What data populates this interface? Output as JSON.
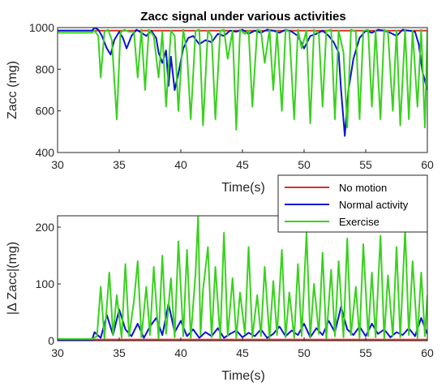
{
  "chart_data": [
    {
      "type": "line",
      "title": "Zacc signal under various activities",
      "xlabel": "Time(s)",
      "ylabel": "Zacc (mg)",
      "xlim": [
        30,
        60
      ],
      "ylim": [
        400,
        1000
      ],
      "xticks": [
        30,
        35,
        40,
        45,
        50,
        55,
        60
      ],
      "yticks": [
        400,
        600,
        800,
        1000
      ],
      "grid": false,
      "series": [
        {
          "name": "No motion",
          "color": "#d9322a",
          "x": [
            30,
            60
          ],
          "y": [
            985,
            985
          ]
        },
        {
          "name": "Normal activity",
          "color": "#0a14d4",
          "x": [
            30,
            32.8,
            33,
            33.3,
            33.6,
            34,
            34.3,
            34.6,
            35,
            35.3,
            35.6,
            36,
            36.4,
            36.8,
            37.2,
            37.6,
            38,
            38.2,
            38.5,
            38.8,
            39,
            39.2,
            39.5,
            39.8,
            40.2,
            40.6,
            41,
            41.5,
            42,
            42.5,
            43,
            43.5,
            44,
            44.5,
            45,
            45.5,
            46,
            46.5,
            47,
            47.5,
            48,
            48.5,
            49,
            49.5,
            50,
            50.5,
            51,
            51.5,
            52,
            52.4,
            52.8,
            53,
            53.3,
            53.6,
            54,
            54.5,
            55,
            55.5,
            56,
            56.5,
            57,
            57.5,
            58,
            58.5,
            59,
            59.3,
            59.6,
            60
          ],
          "y": [
            985,
            985,
            1000,
            990,
            960,
            900,
            870,
            940,
            980,
            950,
            900,
            960,
            990,
            975,
            960,
            985,
            950,
            880,
            830,
            890,
            720,
            860,
            700,
            780,
            900,
            950,
            960,
            920,
            940,
            930,
            970,
            960,
            985,
            980,
            990,
            970,
            985,
            975,
            990,
            985,
            975,
            990,
            980,
            960,
            900,
            960,
            970,
            985,
            960,
            930,
            880,
            700,
            480,
            700,
            850,
            950,
            985,
            975,
            990,
            985,
            975,
            960,
            990,
            985,
            980,
            920,
            790,
            700
          ]
        },
        {
          "name": "Exercise",
          "color": "#39d11e",
          "x": [
            30,
            32.8,
            33,
            33.3,
            33.5,
            33.8,
            34.1,
            34.4,
            34.8,
            35.1,
            35.4,
            35.8,
            36.2,
            36.5,
            36.8,
            37.1,
            37.4,
            37.8,
            38.2,
            38.5,
            38.8,
            39.2,
            39.5,
            39.8,
            40.2,
            40.5,
            40.8,
            41.2,
            41.5,
            41.8,
            42.2,
            42.5,
            42.8,
            43.2,
            43.5,
            43.8,
            44.2,
            44.5,
            44.8,
            45.2,
            45.5,
            45.8,
            46.2,
            46.5,
            46.8,
            47.2,
            47.5,
            47.8,
            48.2,
            48.5,
            48.8,
            49.2,
            49.5,
            49.8,
            50.2,
            50.5,
            50.8,
            51.2,
            51.5,
            51.8,
            52.2,
            52.5,
            52.8,
            53.2,
            53.5,
            53.8,
            54.2,
            54.5,
            54.8,
            55.2,
            55.5,
            55.8,
            56.2,
            56.5,
            56.8,
            57.2,
            57.5,
            57.8,
            58.2,
            58.5,
            58.8,
            59.2,
            59.5,
            59.8,
            60
          ],
          "y": [
            975,
            975,
            985,
            960,
            760,
            980,
            990,
            940,
            560,
            975,
            990,
            980,
            980,
            760,
            990,
            700,
            990,
            960,
            760,
            980,
            620,
            985,
            960,
            600,
            990,
            880,
            560,
            985,
            990,
            530,
            985,
            960,
            560,
            985,
            990,
            850,
            985,
            510,
            990,
            970,
            985,
            620,
            990,
            985,
            830,
            990,
            700,
            985,
            600,
            990,
            980,
            560,
            990,
            900,
            985,
            540,
            990,
            970,
            620,
            985,
            990,
            560,
            985,
            880,
            520,
            990,
            980,
            560,
            985,
            990,
            620,
            985,
            560,
            990,
            980,
            600,
            985,
            530,
            990,
            560,
            985,
            620,
            990,
            520,
            985
          ]
        }
      ]
    },
    {
      "type": "line",
      "title": "",
      "xlabel": "Time(s)",
      "ylabel": "|Δ Zacc|(mg)",
      "xlim": [
        30,
        60
      ],
      "ylim": [
        0,
        220
      ],
      "xticks": [
        30,
        35,
        40,
        45,
        50,
        55,
        60
      ],
      "yticks": [
        0,
        100,
        200
      ],
      "grid": false,
      "legend": {
        "position": "top-right",
        "entries": [
          "No motion",
          "Normal activity",
          "Exercise"
        ]
      },
      "series": [
        {
          "name": "No motion",
          "color": "#d9322a",
          "x": [
            30,
            60
          ],
          "y": [
            2,
            2
          ]
        },
        {
          "name": "Normal activity",
          "color": "#0a14d4",
          "x": [
            30,
            32.8,
            33,
            33.5,
            34,
            34.5,
            35,
            35.5,
            36,
            36.5,
            37,
            37.5,
            38,
            38.5,
            39,
            39.5,
            40,
            40.5,
            41,
            41.5,
            42,
            42.5,
            43,
            43.5,
            44,
            44.5,
            45,
            45.5,
            46,
            46.5,
            47,
            47.5,
            48,
            48.5,
            49,
            49.5,
            50,
            50.5,
            51,
            51.5,
            52,
            52.5,
            53,
            53.5,
            54,
            54.5,
            55,
            55.5,
            56,
            56.5,
            57,
            57.5,
            58,
            58.5,
            59,
            59.5,
            60
          ],
          "y": [
            2,
            2,
            15,
            5,
            45,
            10,
            55,
            20,
            8,
            30,
            5,
            25,
            40,
            10,
            65,
            15,
            35,
            8,
            20,
            5,
            15,
            8,
            22,
            5,
            12,
            18,
            6,
            14,
            8,
            20,
            5,
            12,
            25,
            8,
            18,
            10,
            30,
            6,
            22,
            10,
            35,
            15,
            60,
            20,
            10,
            25,
            8,
            30,
            12,
            20,
            6,
            15,
            10,
            22,
            8,
            40,
            12
          ]
        },
        {
          "name": "Exercise",
          "color": "#39d11e",
          "x": [
            30,
            32.8,
            33.2,
            33.5,
            33.8,
            34.2,
            34.5,
            34.8,
            35.2,
            35.5,
            35.8,
            36.2,
            36.5,
            36.8,
            37.2,
            37.5,
            37.8,
            38.2,
            38.5,
            38.8,
            39.2,
            39.5,
            39.8,
            40.2,
            40.5,
            40.8,
            41.2,
            41.4,
            41.6,
            41.8,
            42.2,
            42.5,
            42.8,
            43.2,
            43.5,
            43.8,
            44.2,
            44.5,
            44.8,
            45.2,
            45.5,
            45.8,
            46.2,
            46.5,
            46.8,
            47.2,
            47.5,
            47.8,
            48.2,
            48.5,
            48.8,
            49.2,
            49.5,
            49.8,
            50.2,
            50.5,
            50.8,
            51.2,
            51.5,
            51.8,
            52.2,
            52.5,
            52.8,
            53.2,
            53.5,
            53.8,
            54.2,
            54.5,
            54.8,
            55.2,
            55.5,
            55.8,
            56.2,
            56.5,
            56.8,
            57.2,
            57.5,
            57.8,
            58.2,
            58.5,
            58.8,
            59.2,
            59.5,
            59.8,
            60
          ],
          "y": [
            3,
            3,
            8,
            95,
            4,
            120,
            10,
            80,
            5,
            135,
            8,
            70,
            140,
            6,
            95,
            10,
            130,
            4,
            150,
            12,
            110,
            6,
            175,
            8,
            160,
            5,
            120,
            220,
            10,
            90,
            165,
            6,
            130,
            4,
            190,
            8,
            110,
            5,
            85,
            12,
            165,
            6,
            80,
            8,
            130,
            4,
            105,
            10,
            160,
            6,
            85,
            5,
            135,
            8,
            190,
            6,
            100,
            12,
            155,
            4,
            125,
            8,
            140,
            6,
            180,
            10,
            95,
            5,
            170,
            8,
            120,
            6,
            185,
            4,
            115,
            8,
            165,
            6,
            195,
            10,
            140,
            5,
            120,
            8,
            80
          ]
        }
      ]
    }
  ]
}
